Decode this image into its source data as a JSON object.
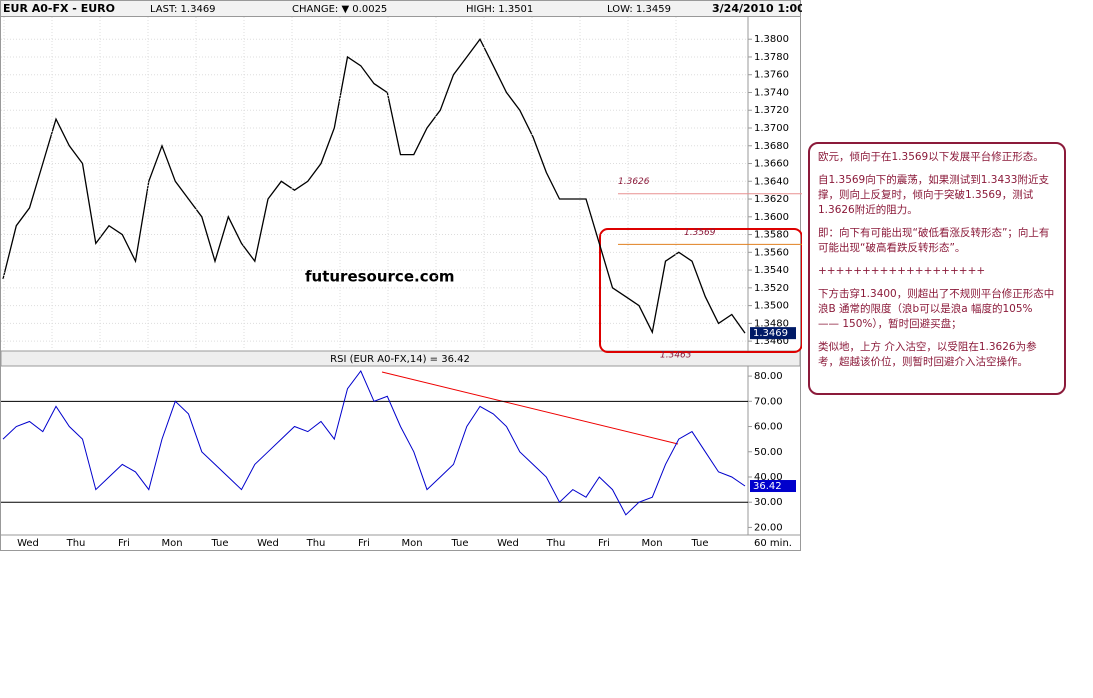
{
  "header": {
    "title": "EUR A0-FX - EURO",
    "last": "LAST: 1.3469",
    "change": "CHANGE: ▼ 0.0025",
    "high": "HIGH: 1.3501",
    "low": "LOW: 1.3459",
    "date": "3/24/2010 1:00"
  },
  "watermark": "futuresource.com",
  "x_axis": {
    "labels": [
      "Wed",
      "Thu",
      "Fri",
      "Mon",
      "Tue",
      "Wed",
      "Thu",
      "Fri",
      "Mon",
      "Tue",
      "Wed",
      "Thu",
      "Fri",
      "Mon",
      "Tue"
    ],
    "unit": "60 min."
  },
  "chart_data": [
    {
      "type": "line",
      "color": "#000000",
      "grid": true,
      "values": [
        1.353,
        1.359,
        1.361,
        1.366,
        1.371,
        1.368,
        1.366,
        1.357,
        1.359,
        1.358,
        1.355,
        1.364,
        1.368,
        1.364,
        1.362,
        1.36,
        1.355,
        1.36,
        1.357,
        1.355,
        1.362,
        1.364,
        1.363,
        1.364,
        1.366,
        1.37,
        1.378,
        1.377,
        1.375,
        1.374,
        1.367,
        1.367,
        1.37,
        1.372,
        1.376,
        1.378,
        1.38,
        1.377,
        1.374,
        1.372,
        1.369,
        1.365,
        1.362,
        1.362,
        1.362,
        1.357,
        1.352,
        1.351,
        1.35,
        1.347,
        1.355,
        1.356,
        1.355,
        1.351,
        1.348,
        1.349,
        1.3469
      ],
      "ylim": [
        1.345,
        1.3825
      ],
      "yticks": [
        {
          "value": 1.346,
          "label": "1.3460"
        },
        {
          "value": 1.348,
          "label": "1.3480"
        },
        {
          "value": 1.35,
          "label": "1.3500"
        },
        {
          "value": 1.352,
          "label": "1.3520"
        },
        {
          "value": 1.354,
          "label": "1.3540"
        },
        {
          "value": 1.356,
          "label": "1.3560"
        },
        {
          "value": 1.358,
          "label": "1.3580"
        },
        {
          "value": 1.36,
          "label": "1.3600"
        },
        {
          "value": 1.362,
          "label": "1.3620"
        },
        {
          "value": 1.364,
          "label": "1.3640"
        },
        {
          "value": 1.366,
          "label": "1.3660"
        },
        {
          "value": 1.368,
          "label": "1.3680"
        },
        {
          "value": 1.37,
          "label": "1.3700"
        },
        {
          "value": 1.372,
          "label": "1.3720"
        },
        {
          "value": 1.374,
          "label": "1.3740"
        },
        {
          "value": 1.376,
          "label": "1.3760"
        },
        {
          "value": 1.378,
          "label": "1.3780"
        },
        {
          "value": 1.38,
          "label": "1.3800"
        }
      ],
      "annotations": [
        1.3626,
        1.3569,
        1.3463
      ]
    },
    {
      "type": "line",
      "title": "RSI (EUR A0-FX,14) = 36.42",
      "color": "#0000cc",
      "grid": false,
      "values": [
        55,
        60,
        62,
        58,
        68,
        60,
        55,
        35,
        40,
        45,
        42,
        35,
        55,
        70,
        65,
        50,
        45,
        40,
        35,
        45,
        50,
        55,
        60,
        58,
        62,
        55,
        75,
        82,
        70,
        72,
        60,
        50,
        35,
        40,
        45,
        60,
        68,
        65,
        60,
        50,
        45,
        40,
        30,
        35,
        32,
        40,
        35,
        25,
        30,
        32,
        45,
        55,
        58,
        50,
        42,
        40,
        36.42
      ],
      "ylim": [
        17,
        84
      ],
      "yticks": [
        {
          "value": 20,
          "label": "20.00"
        },
        {
          "value": 30,
          "label": "30.00"
        },
        {
          "value": 40,
          "label": "40.00"
        },
        {
          "value": 50,
          "label": "50.00"
        },
        {
          "value": 60,
          "label": "60.00"
        },
        {
          "value": 70,
          "label": "70.00"
        },
        {
          "value": 80,
          "label": "80.00"
        }
      ],
      "levels": [
        70,
        30
      ]
    }
  ],
  "note": {
    "paragraphs": [
      "欧元，倾向于在1.3569以下发展平台修正形态。",
      "自1.3569向下的震荡，如果测试到1.3433附近支撑，则向上反复时，倾向于突破1.3569，测试1.3626附近的阻力。",
      "即：向下有可能出现“破低看涨反转形态”；向上有可能出现“破高看跌反转形态”。",
      "+++++++++++++++++++",
      "下方击穿1.3400，则超出了不规则平台修正形态中浪B 通常的限度（浪b可以是浪a 幅度的105% —— 150%），暂时回避买盘；",
      "类似地，上方 介入沽空，以受阻在1.3626为参考，超越该价位，则暂时回避介入沽空操作。"
    ]
  }
}
